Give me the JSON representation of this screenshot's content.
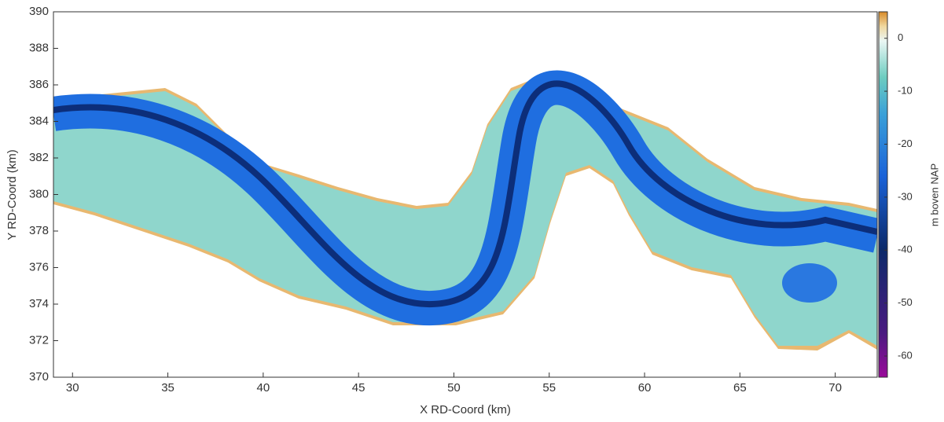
{
  "chart_data": {
    "type": "map",
    "xlabel": "X RD-Coord (km)",
    "ylabel": "Y RD-Coord (km)",
    "xlim": [
      29,
      72.2
    ],
    "xticks": [
      30,
      35,
      40,
      45,
      50,
      55,
      60,
      65,
      70
    ],
    "ylim": [
      370,
      390
    ],
    "yticks": [
      370,
      372,
      374,
      376,
      378,
      380,
      382,
      384,
      386,
      388,
      390
    ],
    "colorbar": {
      "label": "m boven NAP",
      "lim": [
        -64,
        5
      ],
      "ticks": [
        -60,
        -50,
        -40,
        -30,
        -20,
        -10,
        0
      ]
    }
  }
}
